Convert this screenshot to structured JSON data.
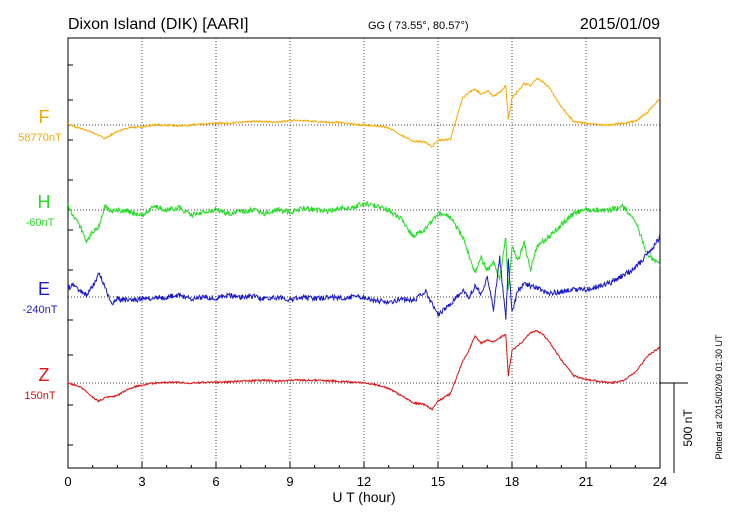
{
  "header": {
    "station": "Dixon Island (DIK)  [AARI]",
    "coords": "GG ( 73.55°,  80.57°)",
    "date": "2015/01/09"
  },
  "footer_note": "Plotted at 2015/02/09 01:30 UT",
  "chart_data": {
    "type": "line",
    "xlabel": "U T (hour)",
    "xlim": [
      0,
      24
    ],
    "xticks": [
      "0",
      "3",
      "6",
      "9",
      "12",
      "15",
      "18",
      "21",
      "24"
    ],
    "scale_label": "500 nT",
    "scale_nT": 500,
    "colors": {
      "F": "#f5a800",
      "H": "#22dd22",
      "E": "#1a1acc",
      "Z": "#e01010"
    },
    "series": [
      {
        "name": "F",
        "baseline_label": "58770nT",
        "color": "#f5a800",
        "x": [
          0,
          0.5,
          1,
          1.5,
          2,
          2.5,
          3,
          3.5,
          4,
          4.5,
          5,
          5.5,
          6,
          6.5,
          7,
          7.5,
          8,
          8.5,
          9,
          9.5,
          10,
          10.5,
          11,
          11.5,
          12,
          12.5,
          13,
          13.5,
          14,
          14.5,
          14.75,
          15,
          15.5,
          16,
          16.25,
          16.5,
          16.75,
          17,
          17.25,
          17.5,
          17.75,
          17.85,
          18,
          18.5,
          18.75,
          19,
          19.25,
          19.5,
          20,
          20.5,
          21,
          21.5,
          22,
          22.5,
          23,
          23.5,
          24
        ],
        "y": [
          5,
          -20,
          -40,
          -75,
          -35,
          -15,
          -10,
          0,
          0,
          -5,
          0,
          5,
          10,
          10,
          15,
          20,
          20,
          15,
          25,
          25,
          20,
          15,
          15,
          5,
          0,
          -5,
          -15,
          -55,
          -90,
          -95,
          -120,
          -85,
          -80,
          150,
          180,
          200,
          170,
          190,
          160,
          180,
          220,
          30,
          150,
          230,
          220,
          260,
          240,
          210,
          100,
          20,
          10,
          0,
          0,
          10,
          20,
          70,
          150
        ]
      },
      {
        "name": "H",
        "baseline_label": "-60nT",
        "color": "#22dd22",
        "x": [
          0,
          0.25,
          0.5,
          0.75,
          1,
          1.25,
          1.5,
          1.75,
          2,
          2.5,
          3,
          3.5,
          4,
          4.5,
          5,
          5.5,
          6,
          6.5,
          7,
          7.5,
          8,
          8.5,
          9,
          9.5,
          10,
          10.5,
          11,
          11.5,
          12,
          12.5,
          13,
          13.5,
          14,
          14.5,
          15,
          15.5,
          16,
          16.25,
          16.5,
          16.75,
          17,
          17.25,
          17.5,
          17.75,
          17.85,
          18,
          18.25,
          18.5,
          18.75,
          19,
          19.5,
          20,
          20.5,
          21,
          21.5,
          22,
          22.5,
          23,
          23.5,
          24
        ],
        "y": [
          20,
          -50,
          -90,
          -180,
          -120,
          -90,
          20,
          -10,
          0,
          -10,
          -30,
          20,
          0,
          10,
          -30,
          -10,
          0,
          -20,
          -10,
          0,
          -20,
          0,
          -10,
          10,
          0,
          -10,
          10,
          10,
          40,
          20,
          0,
          -50,
          -150,
          -100,
          -20,
          -40,
          -150,
          -250,
          -350,
          -270,
          -330,
          -290,
          -380,
          -150,
          -450,
          -200,
          -280,
          -180,
          -340,
          -200,
          -150,
          -80,
          -20,
          0,
          0,
          0,
          20,
          -60,
          -250,
          -310
        ]
      },
      {
        "name": "E",
        "baseline_label": "-240nT",
        "color": "#1a1acc",
        "x": [
          0,
          0.25,
          0.5,
          0.75,
          1,
          1.25,
          1.5,
          1.75,
          2,
          2.5,
          3,
          3.5,
          4,
          4.5,
          5,
          5.5,
          6,
          6.5,
          7,
          7.5,
          8,
          8.5,
          9,
          9.5,
          10,
          10.5,
          11,
          11.5,
          12,
          12.5,
          13,
          13.5,
          14,
          14.5,
          15,
          15.5,
          16,
          16.25,
          16.5,
          16.75,
          17,
          17.25,
          17.5,
          17.75,
          17.85,
          18,
          18.25,
          18.5,
          19,
          19.5,
          20,
          20.5,
          21,
          21.5,
          22,
          22.5,
          23,
          23.5,
          24
        ],
        "y": [
          50,
          70,
          30,
          10,
          60,
          130,
          60,
          -40,
          -10,
          -20,
          -10,
          -5,
          0,
          10,
          -10,
          0,
          -5,
          10,
          0,
          5,
          -10,
          0,
          -15,
          0,
          -10,
          0,
          -5,
          0,
          0,
          -20,
          -30,
          -10,
          -20,
          30,
          -100,
          -40,
          40,
          0,
          60,
          20,
          110,
          -70,
          220,
          -120,
          200,
          -80,
          40,
          70,
          50,
          20,
          30,
          40,
          40,
          60,
          80,
          120,
          160,
          240,
          330
        ]
      },
      {
        "name": "Z",
        "baseline_label": "150nT",
        "color": "#e01010",
        "x": [
          0,
          0.5,
          1,
          1.25,
          1.5,
          2,
          2.5,
          3,
          3.5,
          4,
          5,
          6,
          6.5,
          7,
          8,
          8.5,
          9,
          10,
          11,
          11.5,
          12,
          12.5,
          13,
          13.5,
          14,
          14.5,
          14.75,
          15,
          15.5,
          16,
          16.25,
          16.5,
          16.75,
          17,
          17.25,
          17.5,
          17.75,
          17.85,
          18,
          18.5,
          18.75,
          19,
          19.25,
          19.5,
          20,
          20.5,
          21,
          21.5,
          22,
          22.5,
          23,
          23.5,
          24
        ],
        "y": [
          0,
          -20,
          -80,
          -100,
          -80,
          -70,
          -30,
          -10,
          0,
          5,
          0,
          5,
          5,
          10,
          15,
          10,
          15,
          15,
          10,
          5,
          0,
          -10,
          -30,
          -70,
          -110,
          -120,
          -150,
          -100,
          -60,
          120,
          180,
          260,
          220,
          240,
          230,
          250,
          270,
          40,
          180,
          240,
          280,
          290,
          270,
          230,
          130,
          40,
          20,
          10,
          0,
          15,
          60,
          150,
          200
        ]
      }
    ]
  }
}
